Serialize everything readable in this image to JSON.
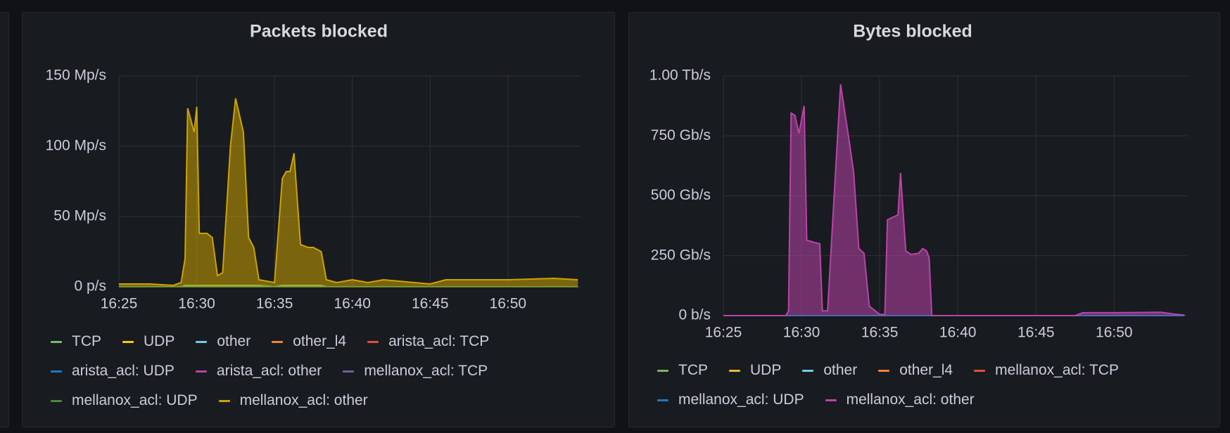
{
  "chart_data": [
    {
      "type": "area",
      "title": "Packets blocked",
      "x": [
        "16:25:00",
        "16:27:00",
        "16:28:30",
        "16:29:00",
        "16:29:15",
        "16:29:25",
        "16:29:50",
        "16:30:00",
        "16:30:10",
        "16:30:40",
        "16:31:00",
        "16:31:20",
        "16:31:40",
        "16:32:10",
        "16:32:30",
        "16:33:00",
        "16:33:20",
        "16:33:40",
        "16:34:00",
        "16:35:00",
        "16:35:30",
        "16:35:45",
        "16:36:00",
        "16:36:15",
        "16:36:40",
        "16:37:10",
        "16:37:30",
        "16:38:00",
        "16:38:20",
        "16:39:00",
        "16:40:00",
        "16:41:00",
        "16:42:00",
        "16:44:00",
        "16:45:00",
        "16:46:00",
        "16:48:00",
        "16:50:00",
        "16:53:00",
        "16:54:30"
      ],
      "xlim": [
        "16:25",
        "16:54:40"
      ],
      "xticks": [
        "16:25",
        "16:30",
        "16:35",
        "16:40",
        "16:45",
        "16:50"
      ],
      "ylim": [
        0,
        150
      ],
      "yticks": [
        {
          "value": 0,
          "label": "0 p/s"
        },
        {
          "value": 50,
          "label": "50 Mp/s"
        },
        {
          "value": 100,
          "label": "100 Mp/s"
        },
        {
          "value": 150,
          "label": "150 Mp/s"
        }
      ],
      "grid": true,
      "series": [
        {
          "name": "TCP",
          "color": "#73bf69",
          "values": [
            0,
            0,
            0,
            0,
            1,
            1,
            1,
            1,
            1,
            1,
            1,
            1,
            1,
            1,
            1,
            1,
            1,
            1,
            1,
            0,
            1,
            1,
            1,
            1,
            1,
            1,
            1,
            1,
            0,
            0,
            0,
            0,
            0,
            0,
            0,
            0,
            0,
            0,
            0,
            0
          ]
        },
        {
          "name": "UDP",
          "color": "#f2cc0c",
          "values": [
            0,
            0,
            0,
            0,
            0,
            0,
            0,
            0,
            0,
            0,
            0,
            0,
            0,
            0,
            0,
            0,
            0,
            0,
            0,
            0,
            0,
            0,
            0,
            0,
            0,
            0,
            0,
            0,
            0,
            0,
            0,
            0,
            0,
            0,
            0,
            0,
            0,
            0,
            0,
            0
          ]
        },
        {
          "name": "other",
          "color": "#6ed0e0",
          "values": [
            0,
            0,
            0,
            0,
            0,
            0,
            0,
            0,
            0,
            0,
            0,
            0,
            0,
            0,
            0,
            0,
            0,
            0,
            0,
            0,
            0,
            0,
            0,
            0,
            0,
            0,
            0,
            0,
            0,
            0,
            0,
            0,
            0,
            0,
            0,
            0,
            0,
            0,
            0,
            0
          ]
        },
        {
          "name": "other_l4",
          "color": "#ef843c",
          "values": [
            0,
            0,
            0,
            0,
            0,
            0,
            0,
            0,
            0,
            0,
            0,
            0,
            0,
            0,
            0,
            0,
            0,
            0,
            0,
            0,
            0,
            0,
            0,
            0,
            0,
            0,
            0,
            0,
            0,
            0,
            0,
            0,
            0,
            0,
            0,
            0,
            0,
            0,
            0,
            0
          ]
        },
        {
          "name": "arista_acl: TCP",
          "color": "#e24d42",
          "values": [
            0,
            0,
            0,
            0,
            0,
            0,
            0,
            0,
            0,
            0,
            0,
            0,
            0,
            0,
            0,
            0,
            0,
            0,
            0,
            0,
            0,
            0,
            0,
            0,
            0,
            0,
            0,
            0,
            0,
            0,
            0,
            0,
            0,
            0,
            0,
            0,
            0,
            0,
            0,
            0
          ]
        },
        {
          "name": "arista_acl: UDP",
          "color": "#1f78c1",
          "values": [
            0,
            0,
            0,
            0,
            0,
            0,
            0,
            0,
            0,
            0,
            0,
            0,
            0,
            0,
            0,
            0,
            0,
            0,
            0,
            0,
            0,
            0,
            0,
            0,
            0,
            0,
            0,
            0,
            0,
            0,
            0,
            0,
            0,
            0,
            0,
            0,
            0,
            0,
            0,
            0
          ]
        },
        {
          "name": "arista_acl: other",
          "color": "#ba43a9",
          "values": [
            0,
            0,
            0,
            0,
            0,
            0,
            0,
            0,
            0,
            0,
            0,
            0,
            0,
            0,
            0,
            0,
            0,
            0,
            0,
            0,
            0,
            0,
            0,
            0,
            0,
            0,
            0,
            0,
            0,
            0,
            0,
            0,
            0,
            0,
            0,
            0,
            0,
            0,
            0,
            0
          ]
        },
        {
          "name": "mellanox_acl: TCP",
          "color": "#705da0",
          "values": [
            0,
            0,
            0,
            0,
            0,
            0,
            0,
            0,
            0,
            0,
            0,
            0,
            0,
            0,
            0,
            0,
            0,
            0,
            0,
            0,
            0,
            0,
            0,
            0,
            0,
            0,
            0,
            0,
            0,
            0,
            0,
            0,
            0,
            0,
            0,
            0,
            0,
            0,
            0,
            0
          ]
        },
        {
          "name": "mellanox_acl: UDP",
          "color": "#508642",
          "values": [
            0,
            0,
            0,
            0,
            0,
            0,
            0,
            0,
            0,
            0,
            0,
            0,
            0,
            0,
            0,
            0,
            0,
            0,
            0,
            0,
            0,
            0,
            0,
            0,
            0,
            0,
            0,
            0,
            0,
            0,
            0,
            0,
            0,
            0,
            0,
            0,
            0,
            0,
            0,
            0
          ]
        },
        {
          "name": "mellanox_acl: other",
          "color": "#cca300",
          "values": [
            2,
            2,
            1,
            3,
            20,
            127,
            110,
            128,
            38,
            38,
            35,
            8,
            10,
            100,
            134,
            110,
            35,
            28,
            5,
            3,
            77,
            82,
            82,
            95,
            30,
            28,
            28,
            25,
            5,
            3,
            5,
            3,
            5,
            3,
            2,
            5,
            5,
            5,
            6,
            5
          ]
        }
      ]
    },
    {
      "type": "area",
      "title": "Bytes blocked",
      "x": [
        "16:25:00",
        "16:29:00",
        "16:29:10",
        "16:29:20",
        "16:29:35",
        "16:29:50",
        "16:30:10",
        "16:30:20",
        "16:30:50",
        "16:31:10",
        "16:31:20",
        "16:31:40",
        "16:32:00",
        "16:32:30",
        "16:33:00",
        "16:33:20",
        "16:33:40",
        "16:34:00",
        "16:34:20",
        "16:35:00",
        "16:35:20",
        "16:35:30",
        "16:35:50",
        "16:36:10",
        "16:36:20",
        "16:36:40",
        "16:37:00",
        "16:37:30",
        "16:37:45",
        "16:38:00",
        "16:38:10",
        "16:38:20",
        "16:42:00",
        "16:47:30",
        "16:48:00",
        "16:50:00",
        "16:53:00",
        "16:54:00",
        "16:54:30"
      ],
      "xlim": [
        "16:25",
        "16:54:40"
      ],
      "xticks": [
        "16:25",
        "16:30",
        "16:35",
        "16:40",
        "16:45",
        "16:50"
      ],
      "ylim": [
        0,
        1000
      ],
      "yticks": [
        {
          "value": 0,
          "label": "0 b/s"
        },
        {
          "value": 250,
          "label": "250 Gb/s"
        },
        {
          "value": 500,
          "label": "500 Gb/s"
        },
        {
          "value": 750,
          "label": "750 Gb/s"
        },
        {
          "value": 1000,
          "label": "1.00 Tb/s"
        }
      ],
      "grid": true,
      "series": [
        {
          "name": "TCP",
          "color": "#7eb26d",
          "values": [
            0,
            0,
            0,
            0,
            0,
            0,
            0,
            0,
            0,
            0,
            0,
            0,
            0,
            0,
            0,
            0,
            0,
            0,
            0,
            0,
            0,
            0,
            0,
            0,
            0,
            0,
            0,
            0,
            0,
            0,
            0,
            0,
            0,
            0,
            0,
            0,
            0,
            0,
            0
          ]
        },
        {
          "name": "UDP",
          "color": "#eab839",
          "values": [
            0,
            0,
            0,
            0,
            0,
            0,
            0,
            0,
            0,
            0,
            0,
            0,
            0,
            0,
            0,
            0,
            0,
            0,
            0,
            0,
            0,
            0,
            0,
            0,
            0,
            0,
            0,
            0,
            0,
            0,
            0,
            0,
            0,
            0,
            0,
            0,
            0,
            0,
            0
          ]
        },
        {
          "name": "other",
          "color": "#6ed0e0",
          "values": [
            0,
            0,
            0,
            0,
            0,
            0,
            0,
            0,
            0,
            0,
            0,
            0,
            0,
            0,
            0,
            0,
            0,
            0,
            0,
            0,
            0,
            0,
            0,
            0,
            0,
            0,
            0,
            0,
            0,
            0,
            0,
            0,
            0,
            0,
            0,
            0,
            0,
            0,
            0
          ]
        },
        {
          "name": "other_l4",
          "color": "#ef843c",
          "values": [
            0,
            0,
            0,
            0,
            0,
            0,
            0,
            0,
            0,
            0,
            0,
            0,
            0,
            0,
            0,
            0,
            0,
            0,
            0,
            0,
            0,
            0,
            0,
            0,
            0,
            0,
            0,
            0,
            0,
            0,
            0,
            0,
            0,
            0,
            0,
            0,
            0,
            0,
            0
          ]
        },
        {
          "name": "mellanox_acl: TCP",
          "color": "#e24d42",
          "values": [
            0,
            0,
            0,
            0,
            0,
            0,
            0,
            0,
            0,
            0,
            0,
            0,
            0,
            0,
            0,
            0,
            0,
            0,
            0,
            0,
            0,
            0,
            0,
            0,
            0,
            0,
            0,
            0,
            0,
            0,
            0,
            0,
            0,
            0,
            0,
            0,
            0,
            0,
            0
          ]
        },
        {
          "name": "mellanox_acl: UDP",
          "color": "#1f78c1",
          "values": [
            0,
            0,
            0,
            0,
            0,
            0,
            0,
            0,
            0,
            0,
            0,
            0,
            0,
            0,
            0,
            0,
            0,
            0,
            0,
            0,
            0,
            0,
            0,
            0,
            0,
            0,
            0,
            0,
            0,
            0,
            0,
            0,
            0,
            0,
            0,
            0,
            0,
            0,
            0
          ]
        },
        {
          "name": "mellanox_acl: other",
          "color": "#ba43a9",
          "values": [
            0,
            0,
            20,
            845,
            835,
            760,
            875,
            315,
            305,
            300,
            20,
            20,
            400,
            965,
            750,
            600,
            280,
            260,
            40,
            5,
            5,
            400,
            410,
            420,
            595,
            270,
            255,
            260,
            280,
            270,
            240,
            0,
            0,
            0,
            12,
            12,
            14,
            5,
            2
          ]
        }
      ]
    }
  ]
}
